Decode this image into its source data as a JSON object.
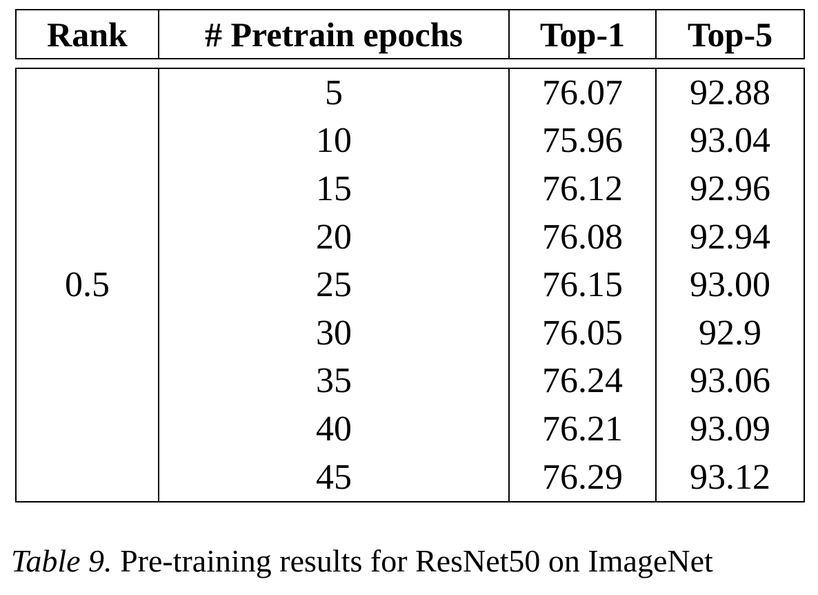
{
  "table": {
    "headers": [
      "Rank",
      "# Pretrain epochs",
      "Top-1",
      "Top-5"
    ],
    "rank": "0.5",
    "rows": [
      {
        "epochs": "5",
        "top1": "76.07",
        "top5": "92.88"
      },
      {
        "epochs": "10",
        "top1": "75.96",
        "top5": "93.04"
      },
      {
        "epochs": "15",
        "top1": "76.12",
        "top5": "92.96"
      },
      {
        "epochs": "20",
        "top1": "76.08",
        "top5": "92.94"
      },
      {
        "epochs": "25",
        "top1": "76.15",
        "top5": "93.00"
      },
      {
        "epochs": "30",
        "top1": "76.05",
        "top5": "92.9"
      },
      {
        "epochs": "35",
        "top1": "76.24",
        "top5": "93.06"
      },
      {
        "epochs": "40",
        "top1": "76.21",
        "top5": "93.09"
      },
      {
        "epochs": "45",
        "top1": "76.29",
        "top5": "93.12"
      }
    ]
  },
  "caption": {
    "label": "Table 9.",
    "text": "Pre-training results for ResNet50 on ImageNet"
  }
}
